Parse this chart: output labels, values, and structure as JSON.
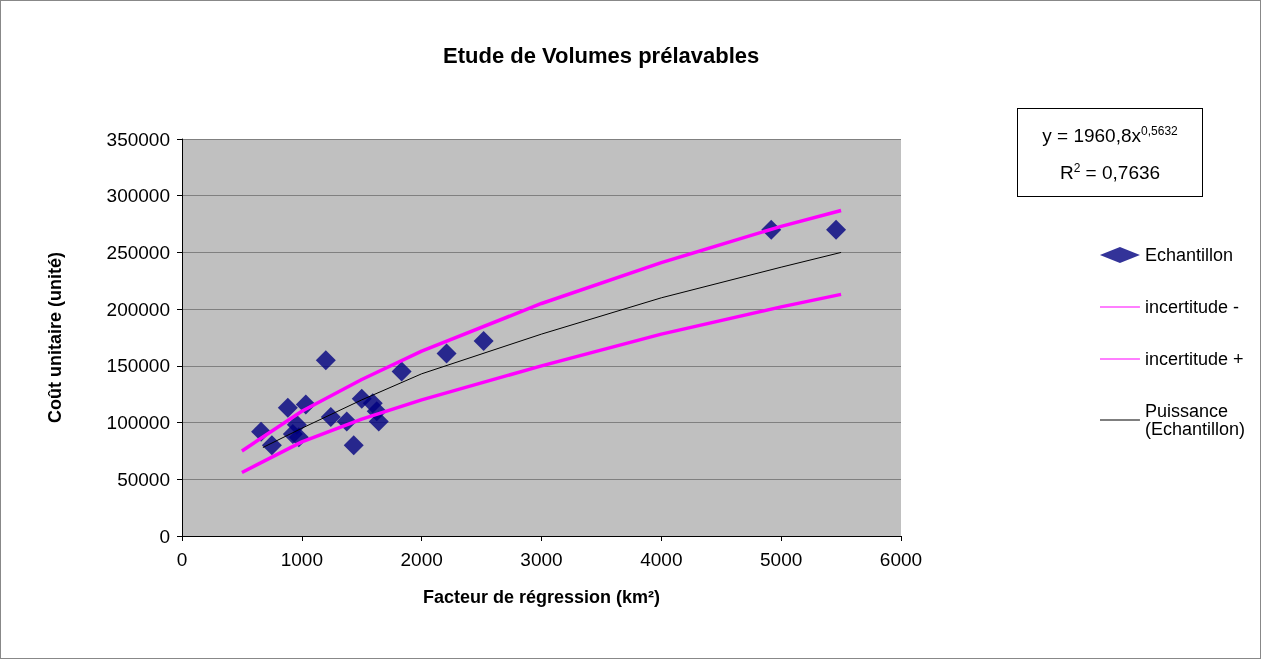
{
  "chart_data": {
    "type": "scatter",
    "title": "Etude de Volumes prélavables",
    "xlabel": "Facteur de régression (km²)",
    "ylabel": "Coût unitaire (unité)",
    "annotations": [
      "y = 1960,8x$^{0,5632}$",
      "R$^{2}$ = 0,7636"
    ],
    "series": [
      {
        "name": "Echantillon",
        "marker": "diamond",
        "color": "#000080",
        "x": [
          660,
          750,
          883,
          925,
          958,
          975,
          1033,
          1200,
          1242,
          1375,
          1433,
          1500,
          1592,
          1625,
          1642,
          1833,
          2208,
          2517,
          4917,
          5458
        ],
        "values": [
          92000,
          80000,
          113000,
          90000,
          98000,
          87000,
          116000,
          155000,
          105000,
          101000,
          80000,
          121000,
          117000,
          110000,
          101000,
          145000,
          161000,
          172000,
          270000,
          270000
        ]
      },
      {
        "name": "incertitude -",
        "type": "line",
        "marker": "none",
        "color": "#ff00ff",
        "x": [
          500,
          1000,
          1500,
          2000,
          3000,
          4000,
          5000,
          5500
        ],
        "values": [
          75000,
          110000,
          138000,
          163000,
          205000,
          241000,
          273000,
          287000
        ]
      },
      {
        "name": "incertitude +",
        "type": "line",
        "marker": "none",
        "color": "#ff00ff",
        "x": [
          500,
          1000,
          1500,
          2000,
          3000,
          4000,
          5000,
          5500
        ],
        "values": [
          56000,
          83000,
          103000,
          120000,
          150000,
          178000,
          202000,
          213000
        ]
      },
      {
        "name": "Puissance (Echantillon)",
        "type": "line",
        "marker": "none",
        "color": "#000000",
        "x": [
          675,
          1000,
          1500,
          2000,
          3000,
          4000,
          5000,
          5500
        ],
        "values": [
          78000,
          95000,
          120000,
          143000,
          178000,
          210000,
          237000,
          250000
        ]
      }
    ],
    "xlim": [
      0,
      6000
    ],
    "xticks": [
      0,
      1000,
      2000,
      3000,
      4000,
      5000,
      6000
    ],
    "ylim": [
      0,
      350000
    ],
    "yticks": [
      0,
      50000,
      100000,
      150000,
      200000,
      250000,
      300000,
      350000
    ],
    "grid": "y",
    "legend": "right"
  }
}
